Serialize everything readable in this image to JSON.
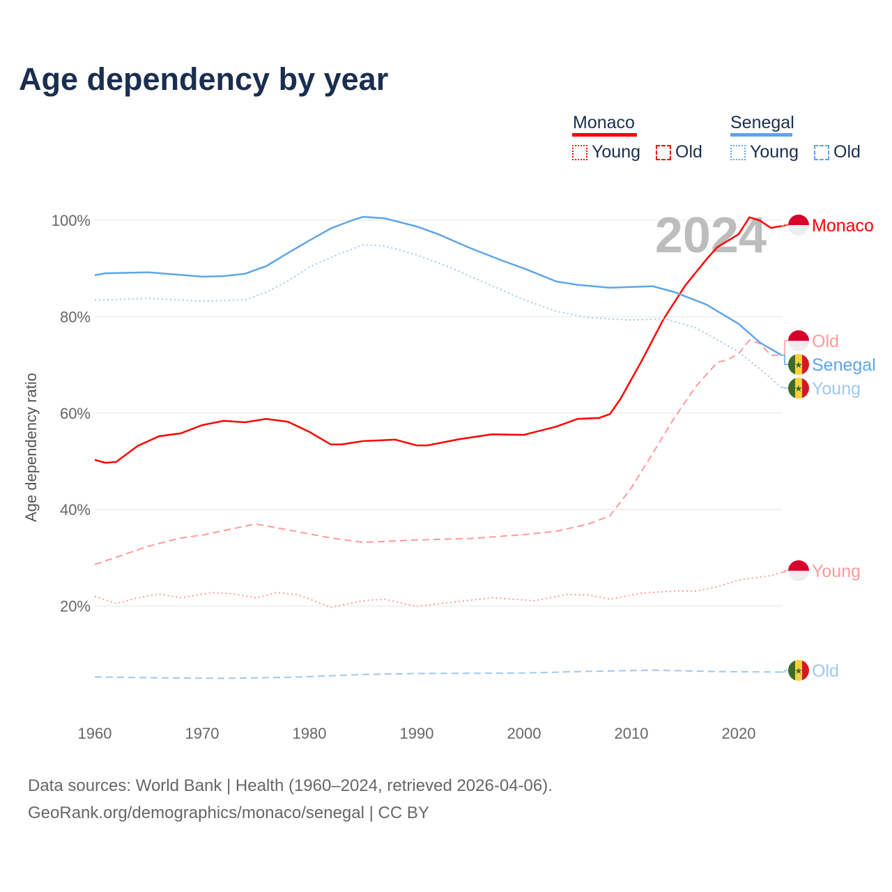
{
  "chart_data": {
    "type": "line",
    "title": "Age dependency by year",
    "xlabel": "",
    "ylabel": "Age dependency ratio",
    "xlim": [
      1960,
      2024
    ],
    "ylim": [
      0,
      105
    ],
    "xticks": [
      "1960",
      "1970",
      "1980",
      "1990",
      "2000",
      "2010",
      "2020"
    ],
    "yticks": [
      "20%",
      "40%",
      "60%",
      "80%",
      "100%"
    ],
    "year_watermark": "2024",
    "legend": {
      "placement": "top-right",
      "countries": [
        {
          "name": "Monaco",
          "items": [
            "Young",
            "Old"
          ],
          "color": "#ff0000"
        },
        {
          "name": "Senegal",
          "items": [
            "Young",
            "Old"
          ],
          "color": "#5da5e8"
        }
      ]
    },
    "series": [
      {
        "name": "Monaco",
        "label": "Monaco",
        "style": "solid",
        "color": "#ff0000",
        "flag": "monaco",
        "x": [
          1960,
          1961,
          1962,
          1964,
          1966,
          1968,
          1970,
          1972,
          1974,
          1976,
          1978,
          1980,
          1982,
          1983,
          1985,
          1988,
          1990,
          1991,
          1994,
          1997,
          2000,
          2003,
          2005,
          2007,
          2008,
          2009,
          2011,
          2013,
          2015,
          2017,
          2018,
          2020,
          2021,
          2022,
          2023,
          2024
        ],
        "y": [
          50.3,
          49.7,
          49.9,
          53.2,
          55.2,
          55.8,
          57.5,
          58.4,
          58.1,
          58.8,
          58.2,
          56.1,
          53.5,
          53.5,
          54.2,
          54.5,
          53.3,
          53.3,
          54.6,
          55.6,
          55.5,
          57.2,
          58.8,
          59,
          59.8,
          63,
          71,
          79.5,
          86.4,
          91.9,
          94.4,
          97.1,
          100.6,
          99.9,
          98.4,
          98.8
        ]
      },
      {
        "name": "Monaco Old",
        "label": "Old",
        "style": "dashed",
        "color": "#ff9999",
        "flag": "monaco",
        "x": [
          1960,
          1965,
          1968,
          1970,
          1973,
          1975,
          1978,
          1982,
          1985,
          1990,
          1995,
          2000,
          2003,
          2006,
          2008,
          2010,
          2012,
          2014,
          2016,
          2018,
          2019,
          2020,
          2021,
          2022,
          2023,
          2024
        ],
        "y": [
          28.6,
          32.4,
          34.1,
          34.7,
          36.1,
          37,
          35.8,
          34.1,
          33.2,
          33.7,
          34,
          34.8,
          35.5,
          37,
          38.7,
          44.5,
          51.7,
          59,
          65.5,
          70.5,
          71.1,
          72.3,
          75.1,
          74.4,
          72,
          72
        ]
      },
      {
        "name": "Senegal",
        "label": "Senegal",
        "style": "solid",
        "color": "#5da5e8",
        "flag": "senegal",
        "x": [
          1960,
          1961,
          1965,
          1970,
          1972,
          1974,
          1976,
          1978,
          1980,
          1982,
          1984,
          1985,
          1987,
          1990,
          1992,
          1995,
          1998,
          2000,
          2003,
          2005,
          2008,
          2012,
          2014,
          2017,
          2020,
          2022,
          2024
        ],
        "y": [
          88.6,
          89,
          89.2,
          88.3,
          88.4,
          88.9,
          90.5,
          93.2,
          95.8,
          98.3,
          100,
          100.7,
          100.4,
          98.7,
          97.1,
          94.2,
          91.6,
          90,
          87.3,
          86.6,
          86,
          86.3,
          85.1,
          82.5,
          78.5,
          74.6,
          72
        ]
      },
      {
        "name": "Senegal Young",
        "label": "Young",
        "style": "dotted",
        "color": "#9ec8f0",
        "flag": "senegal",
        "x": [
          1960,
          1965,
          1970,
          1974,
          1976,
          1978,
          1980,
          1983,
          1985,
          1987,
          1990,
          1993,
          1996,
          2000,
          2003,
          2006,
          2010,
          2013,
          2016,
          2020,
          2022,
          2024
        ],
        "y": [
          83.4,
          83.8,
          83.2,
          83.5,
          85.1,
          87.4,
          90.3,
          93.2,
          94.9,
          94.7,
          92.8,
          90.3,
          87.4,
          83.5,
          81.1,
          79.8,
          79.3,
          79.6,
          77.7,
          72.7,
          69.1,
          65.3
        ]
      },
      {
        "name": "Monaco Young",
        "label": "Young",
        "style": "dotted",
        "color": "#ff9999",
        "flag": "monaco",
        "x": [
          1960,
          1962,
          1964,
          1966,
          1968,
          1971,
          1973,
          1975,
          1977,
          1979,
          1982,
          1985,
          1987,
          1990,
          1993,
          1997,
          2001,
          2004,
          2006,
          2008,
          2011,
          2014,
          2016,
          2018,
          2020,
          2023,
          2024
        ],
        "y": [
          22,
          20.5,
          21.7,
          22.5,
          21.7,
          22.8,
          22.5,
          21.7,
          22.8,
          22.3,
          19.7,
          21.1,
          21.4,
          19.9,
          20.7,
          21.7,
          21.1,
          22.4,
          22.3,
          21.4,
          22.7,
          23.1,
          23.1,
          24,
          25.4,
          26.3,
          27
        ]
      },
      {
        "name": "Senegal Old",
        "label": "Old",
        "style": "dashed",
        "color": "#9ec8f0",
        "flag": "senegal",
        "x": [
          1960,
          1966,
          1972,
          1978,
          1985,
          1990,
          2000,
          2005,
          2012,
          2018,
          2024
        ],
        "y": [
          5.3,
          5.1,
          5.0,
          5.2,
          5.8,
          6.0,
          6.1,
          6.4,
          6.7,
          6.4,
          6.3
        ]
      }
    ]
  },
  "footer": {
    "line1": "Data sources: World Bank | Health (1960–2024, retrieved 2026-04-06).",
    "line2": "GeoRank.org/demographics/monaco/senegal | CC BY"
  }
}
